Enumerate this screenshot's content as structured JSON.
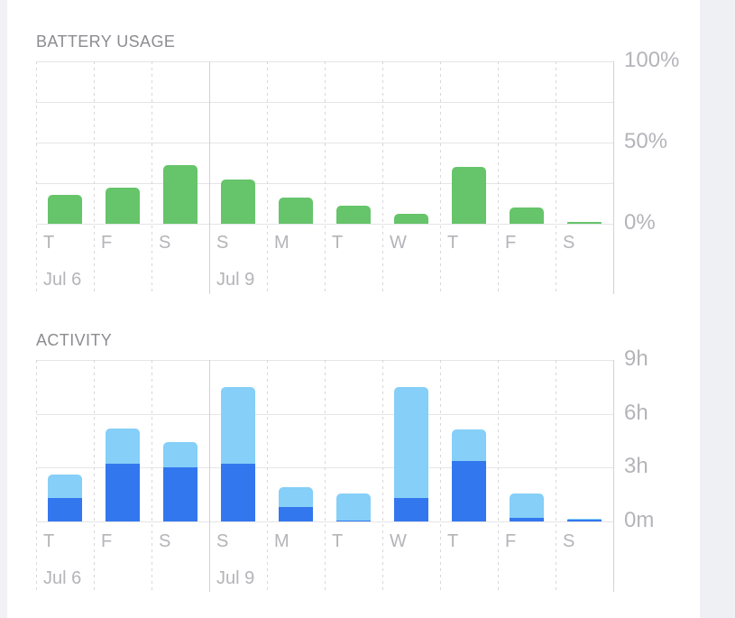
{
  "page": {
    "background": "#ffffff",
    "left_page_edge_color": "#f1f1f6",
    "right_page_edge_color": "#eef0f4"
  },
  "chart_data": [
    {
      "type": "bar",
      "title": "BATTERY USAGE",
      "categories": [
        "T",
        "F",
        "S",
        "S",
        "M",
        "T",
        "W",
        "T",
        "F",
        "S"
      ],
      "values": [
        18,
        22,
        36,
        27,
        16,
        11,
        6,
        35,
        10,
        1
      ],
      "unit": "percent",
      "ylim": [
        0,
        100
      ],
      "yticks": [
        {
          "value": 100,
          "label": "100%"
        },
        {
          "value": 50,
          "label": "50%"
        },
        {
          "value": 0,
          "label": "0%"
        }
      ],
      "gridlines": [
        0,
        25,
        50,
        75,
        100
      ],
      "bar_color": "#66c46a",
      "week_divider_col": 3,
      "week_labels": [
        {
          "col": 0,
          "label": "Jul 6"
        },
        {
          "col": 3,
          "label": "Jul 9"
        }
      ],
      "legend_position": "none",
      "axis_label_side": "right",
      "grid": "on"
    },
    {
      "type": "stacked-bar",
      "title": "ACTIVITY",
      "categories": [
        "T",
        "F",
        "S",
        "S",
        "M",
        "T",
        "W",
        "T",
        "F",
        "S"
      ],
      "series": [
        {
          "name": "dark-blue",
          "color": "#3377ee",
          "values": [
            1.3,
            3.2,
            3.0,
            3.2,
            0.8,
            0.05,
            1.3,
            3.35,
            0.2,
            0.1
          ]
        },
        {
          "name": "light-blue",
          "color": "#85cff8",
          "values": [
            1.3,
            2.0,
            1.4,
            4.3,
            1.1,
            1.5,
            6.2,
            1.8,
            1.35,
            0.05
          ]
        }
      ],
      "unit": "hours",
      "ylim": [
        0,
        9
      ],
      "yticks": [
        {
          "value": 9,
          "label": "9h"
        },
        {
          "value": 6,
          "label": "6h"
        },
        {
          "value": 3,
          "label": "3h"
        },
        {
          "value": 0,
          "label": "0m"
        }
      ],
      "gridlines": [
        0,
        3,
        6,
        9
      ],
      "week_divider_col": 3,
      "week_labels": [
        {
          "col": 0,
          "label": "Jul 6"
        },
        {
          "col": 3,
          "label": "Jul 9"
        }
      ],
      "legend_position": "none",
      "axis_label_side": "right",
      "grid": "on"
    }
  ]
}
